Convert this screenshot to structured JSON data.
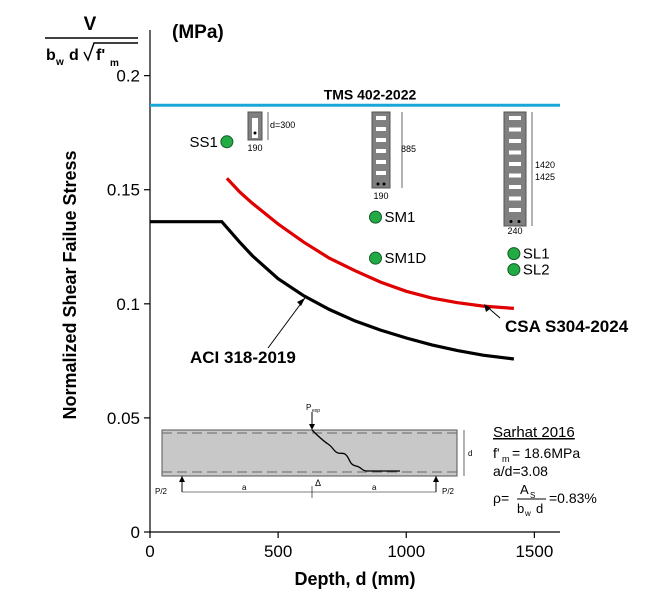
{
  "chart_data": {
    "type": "scatter",
    "ylabel": "Normalized Shear Failue Stress",
    "xlabel": "Depth, d (mm)",
    "unit_label": "(MPa)",
    "ylabel_formula": {
      "numerator": "V",
      "den_b": "b",
      "den_b_sub": "w",
      "den_d": "d",
      "den_f": "f'",
      "den_f_sub": "m"
    },
    "xlim": [
      0,
      1600
    ],
    "ylim": [
      0,
      0.22
    ],
    "x_ticks": [
      0,
      500,
      1000,
      1500
    ],
    "x_tick_labels": [
      "0",
      "500",
      "1000",
      "1500"
    ],
    "y_ticks": [
      0,
      0.05,
      0.1,
      0.15,
      0.2
    ],
    "y_tick_labels": [
      "0",
      "0.05",
      "0.1",
      "0.15",
      "0.2"
    ],
    "points": [
      {
        "label": "SS1",
        "x": 300,
        "y": 0.171
      },
      {
        "label": "SM1",
        "x": 880,
        "y": 0.138
      },
      {
        "label": "SM1D",
        "x": 880,
        "y": 0.12
      },
      {
        "label": "SL1",
        "x": 1420,
        "y": 0.122
      },
      {
        "label": "SL2",
        "x": 1420,
        "y": 0.115
      }
    ],
    "tms": {
      "label": "TMS 402-2022",
      "y": 0.187,
      "color": "#1aa7d8"
    },
    "aci": {
      "label": "ACI 318-2019",
      "color": "#000000",
      "x": [
        0,
        100,
        200,
        280,
        350,
        400,
        500,
        600,
        700,
        800,
        900,
        1000,
        1100,
        1200,
        1300,
        1420
      ],
      "y": [
        0.136,
        0.136,
        0.136,
        0.136,
        0.127,
        0.121,
        0.111,
        0.1035,
        0.0975,
        0.0925,
        0.0885,
        0.085,
        0.082,
        0.0795,
        0.0775,
        0.0758
      ]
    },
    "csa": {
      "label": "CSA S304-2024",
      "color": "#e00000",
      "x": [
        300,
        350,
        400,
        500,
        600,
        700,
        800,
        900,
        1000,
        1100,
        1200,
        1300,
        1420
      ],
      "y": [
        0.155,
        0.149,
        0.144,
        0.135,
        0.127,
        0.12,
        0.1145,
        0.1095,
        0.1055,
        0.1025,
        0.1005,
        0.099,
        0.098
      ]
    }
  },
  "specimen_sketches": {
    "small": {
      "dim": "d=300",
      "width": "190"
    },
    "medium": {
      "dim": "885",
      "width": "190"
    },
    "large": {
      "dim1": "1420",
      "dim2": "1425",
      "width": "240"
    }
  },
  "beam_sketch": {
    "load_label": "P",
    "load_sub": "exp",
    "support_left": "P/2",
    "support_right": "P/2",
    "span_a_left": "a",
    "span_a_right": "a",
    "delta": "Δ",
    "depth": "d"
  },
  "info": {
    "source": "Sarhat 2016",
    "fm_prefix": "f'",
    "fm_sub": "m",
    "fm_value": "= 18.6MPa",
    "ad": "a/d=3.08",
    "rho_prefix": "ρ=",
    "rho_num": "A",
    "rho_num_sub": "S",
    "rho_den_b": "b",
    "rho_den_sub": "w",
    "rho_den_d": "d",
    "rho_value": "=0.83%"
  }
}
